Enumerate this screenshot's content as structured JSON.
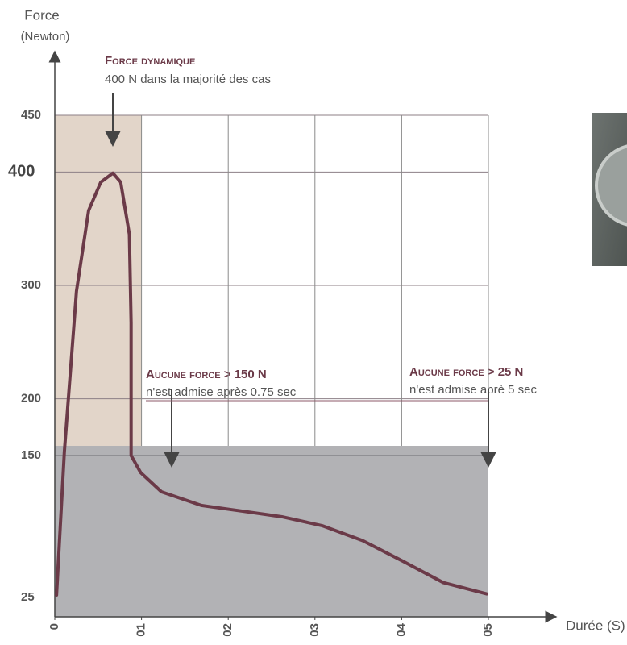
{
  "chart_data": {
    "type": "line",
    "y_label": "Force",
    "y_label_unit": "(Newton)",
    "x_label": "Durée (S)",
    "xlim": [
      0,
      5
    ],
    "ylim": [
      0,
      450
    ],
    "xticks": [
      0,
      {
        "value": 1,
        "label": "01"
      },
      {
        "value": 2,
        "label": "02"
      },
      {
        "value": 3,
        "label": "03"
      },
      {
        "value": 4,
        "label": "04"
      },
      {
        "value": 5,
        "label": "05"
      }
    ],
    "yticks": [
      450,
      400,
      300,
      200,
      150,
      25
    ],
    "grid": true,
    "series": [
      {
        "color": "#6b3a48",
        "x": [
          0.02,
          0.11,
          0.25,
          0.39,
          0.53,
          0.67,
          0.76,
          0.86,
          0.88,
          0.88,
          0.99,
          1.23,
          1.69,
          2.16,
          2.62,
          3.09,
          3.55,
          4.01,
          4.48,
          4.98
        ],
        "values": [
          27,
          153,
          295,
          366,
          391,
          399,
          391,
          345,
          267,
          150,
          135,
          118,
          106,
          101,
          96,
          88,
          75,
          57,
          38,
          28
        ]
      }
    ],
    "annotations": [
      {
        "title": "Force dynamique",
        "text": "400 N dans la majorité des cas"
      },
      {
        "title": "Aucune force > 150 N",
        "text": "n'est admise après 0.75 sec"
      },
      {
        "title": "Aucune force > 25 N",
        "text": "n'est admise aprè 5 sec"
      }
    ]
  }
}
